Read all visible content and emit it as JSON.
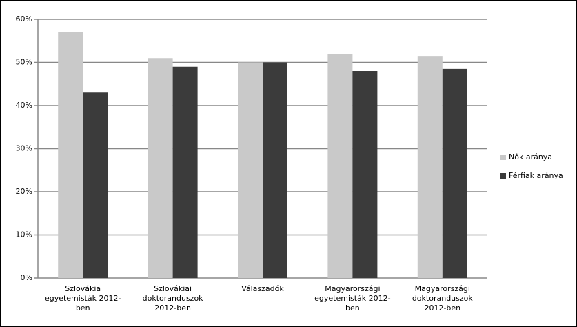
{
  "chart_data": {
    "type": "bar",
    "categories": [
      "Szlovákia egyetemisták 2012-ben",
      "Szlovákiai doktoranduszok 2012-ben",
      "Válaszadók",
      "Magyarországi egyetemisták 2012-ben",
      "Magyarországi doktoranduszok 2012-ben"
    ],
    "series": [
      {
        "name": "Nők aránya",
        "color": "#c9c9c9",
        "values": [
          57,
          51,
          50,
          52,
          51.5
        ]
      },
      {
        "name": "Férfiak aránya",
        "color": "#3b3b3b",
        "values": [
          43,
          49,
          50,
          48,
          48.5
        ]
      }
    ],
    "ylim": [
      0,
      60
    ],
    "yticks": [
      {
        "value": 0,
        "label": "0%"
      },
      {
        "value": 10,
        "label": "10%"
      },
      {
        "value": 20,
        "label": "20%"
      },
      {
        "value": 30,
        "label": "30%"
      },
      {
        "value": 40,
        "label": "40%"
      },
      {
        "value": 50,
        "label": "50%"
      },
      {
        "value": 60,
        "label": "60%"
      }
    ],
    "grid": true,
    "legend": "right"
  }
}
